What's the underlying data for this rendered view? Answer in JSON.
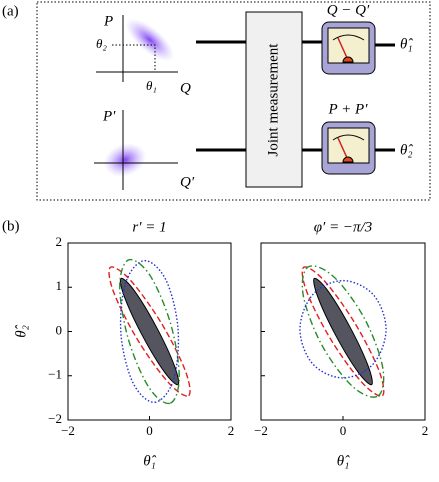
{
  "diagram": {
    "panel_label": "(a)",
    "p_label": "P",
    "theta2_label": "θ₂",
    "theta1_label": "θ₁",
    "q_label": "Q",
    "p_prime_label": "P′",
    "q_prime_label": "Q′",
    "box_label": "Joint measurement",
    "meter1_label": "Q − Q′",
    "meter2_label": "P + P′",
    "out1_label": "θ̂₁",
    "out2_label": "θ̂₂"
  },
  "panel_b_label": "(b)",
  "chart_data": [
    {
      "type": "line",
      "title": "r′ = 1",
      "xlabel": "θ̂₁",
      "ylabel": "θ̂₂",
      "show_ytick_labels": true,
      "xlim": [
        -2,
        2
      ],
      "ylim": [
        -2,
        2
      ],
      "xticks": [
        {
          "value": -2,
          "label": "−2"
        },
        0,
        2
      ],
      "yticks": [
        {
          "value": -2,
          "label": "−2"
        },
        {
          "value": -1,
          "label": "−1"
        },
        0,
        1,
        2
      ],
      "series": [
        {
          "color": "#555560",
          "fill": true,
          "dash": "none",
          "x": [
            0.7,
            0.61,
            0.17,
            -0.37,
            -0.7,
            -0.61,
            -0.17,
            0.37
          ],
          "y": [
            -1.2,
            -0.77,
            0.1,
            0.92,
            1.2,
            0.77,
            -0.1,
            -0.92
          ]
        },
        {
          "color": "#e02020",
          "fill": false,
          "dash": "6 3",
          "x": [
            0.96,
            0.88,
            0.29,
            -0.47,
            -0.96,
            -0.88,
            -0.29,
            0.47
          ],
          "y": [
            -1.45,
            -0.89,
            0.19,
            1.16,
            1.45,
            0.89,
            -0.19,
            -1.16
          ]
        },
        {
          "color": "#2a8a2a",
          "fill": false,
          "dash": "7 3 1.5 3",
          "x": [
            0.51,
            0.73,
            0.52,
            0.01,
            -0.51,
            -0.73,
            -0.52,
            -0.01
          ],
          "y": [
            -1.62,
            -1.03,
            0.17,
            1.27,
            1.62,
            1.03,
            -0.17,
            -1.27
          ]
        },
        {
          "color": "#2030d0",
          "fill": false,
          "dash": "1.5 2",
          "x": [
            0.13,
            0.59,
            0.7,
            0.4,
            -0.13,
            -0.59,
            -0.7,
            -0.4
          ],
          "y": [
            -1.6,
            -1.09,
            0.06,
            1.17,
            1.6,
            1.09,
            -0.06,
            -1.17
          ]
        }
      ]
    },
    {
      "type": "line",
      "title": "φ′ = −π/3",
      "xlabel": "θ̂₁",
      "show_ytick_labels": false,
      "xlim": [
        -2,
        2
      ],
      "ylim": [
        -2,
        2
      ],
      "xticks": [
        {
          "value": -2,
          "label": "−2"
        },
        0,
        2
      ],
      "yticks": [
        -2,
        -1,
        0,
        1,
        2
      ],
      "series": [
        {
          "color": "#555560",
          "fill": true,
          "dash": "none",
          "x": [
            0.7,
            0.61,
            0.17,
            -0.37,
            -0.7,
            -0.61,
            -0.17,
            0.37
          ],
          "y": [
            -1.2,
            -0.77,
            0.1,
            0.92,
            1.2,
            0.77,
            -0.1,
            -0.92
          ]
        },
        {
          "color": "#e02020",
          "fill": false,
          "dash": "6 3",
          "x": [
            0.96,
            0.88,
            0.29,
            -0.47,
            -0.96,
            -0.88,
            -0.29,
            0.47
          ],
          "y": [
            -1.45,
            -0.89,
            0.19,
            1.16,
            1.45,
            0.89,
            -0.19,
            -1.16
          ]
        },
        {
          "color": "#2a8a2a",
          "fill": false,
          "dash": "7 3 1.5 3",
          "x": [
            0.85,
            0.97,
            0.52,
            -0.23,
            -0.85,
            -0.97,
            -0.52,
            0.23
          ],
          "y": [
            -1.46,
            -0.82,
            0.3,
            1.24,
            1.46,
            0.82,
            -0.3,
            -1.24
          ]
        },
        {
          "color": "#2030d0",
          "fill": false,
          "dash": "1.5 2",
          "x": [
            1.05,
            0.74,
            0,
            -0.74,
            -1.05,
            -0.74,
            0,
            0.74
          ],
          "y": [
            0.05,
            0.83,
            1.15,
            0.83,
            0.05,
            -0.73,
            -1.05,
            -0.73
          ]
        }
      ]
    }
  ]
}
